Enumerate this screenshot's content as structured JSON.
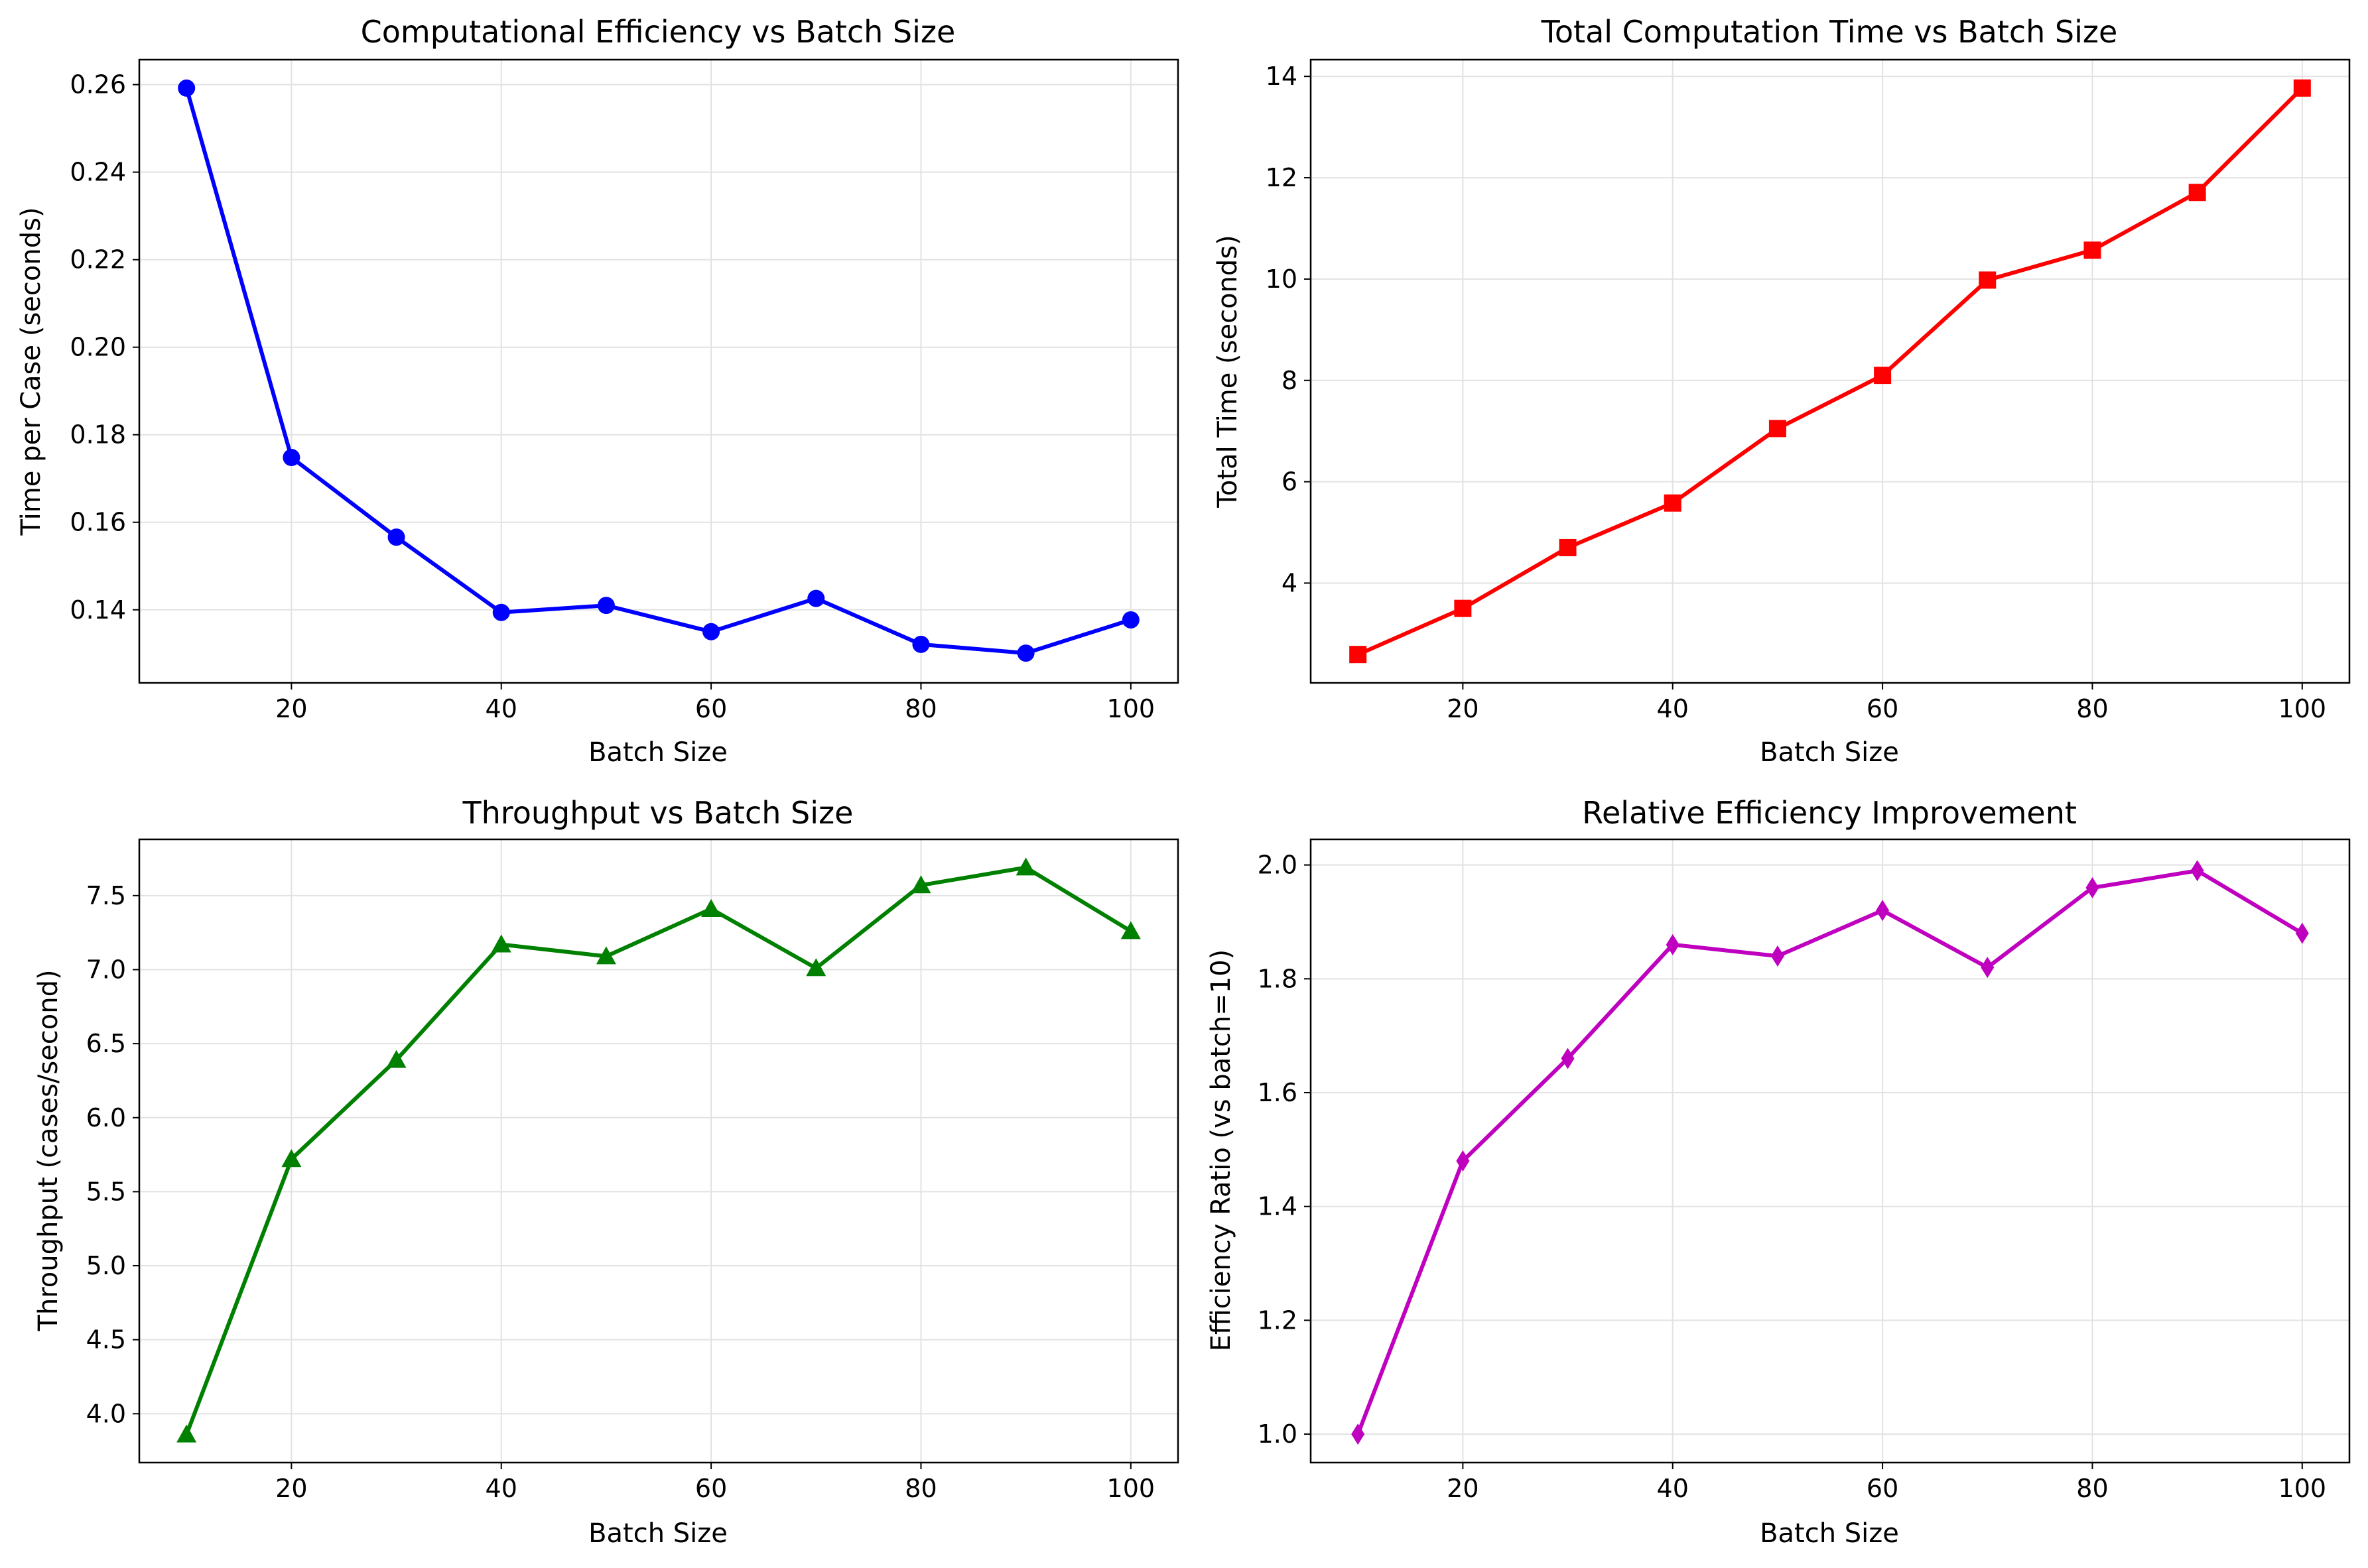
{
  "figure": {
    "layout": "2x2 grid",
    "chart_count": 4
  },
  "chart_data": [
    {
      "type": "line",
      "title": "Computational Efficiency vs Batch Size",
      "xlabel": "Batch Size",
      "ylabel": "Time per Case (seconds)",
      "x": [
        10,
        20,
        30,
        40,
        50,
        60,
        70,
        80,
        90,
        100
      ],
      "series": [
        {
          "values": [
            0.2592,
            0.1748,
            0.1566,
            0.1394,
            0.141,
            0.135,
            0.1426,
            0.1321,
            0.1301,
            0.1377
          ],
          "color": "#0000ff",
          "marker": "circle"
        }
      ],
      "xlim": [
        5.5,
        104.5
      ],
      "ylim": [
        0.1233,
        0.2657
      ],
      "xticks": [
        20,
        40,
        60,
        80,
        100
      ],
      "yticks": [
        0.14,
        0.16,
        0.18,
        0.2,
        0.22,
        0.24,
        0.26
      ],
      "ytick_labels": [
        "0.14",
        "0.16",
        "0.18",
        "0.20",
        "0.22",
        "0.24",
        "0.26"
      ],
      "grid": true
    },
    {
      "type": "line",
      "title": "Total Computation Time vs Batch Size",
      "xlabel": "Batch Size",
      "ylabel": "Total Time (seconds)",
      "x": [
        10,
        20,
        30,
        40,
        50,
        60,
        70,
        80,
        90,
        100
      ],
      "series": [
        {
          "values": [
            2.59,
            3.5,
            4.7,
            5.58,
            7.05,
            8.1,
            9.98,
            10.57,
            11.71,
            13.77
          ],
          "color": "#ff0000",
          "marker": "square"
        }
      ],
      "xlim": [
        5.5,
        104.5
      ],
      "ylim": [
        2.03,
        14.33
      ],
      "xticks": [
        20,
        40,
        60,
        80,
        100
      ],
      "yticks": [
        4,
        6,
        8,
        10,
        12,
        14
      ],
      "ytick_labels": [
        "4",
        "6",
        "8",
        "10",
        "12",
        "14"
      ],
      "grid": true
    },
    {
      "type": "line",
      "title": "Throughput vs Batch Size",
      "xlabel": "Batch Size",
      "ylabel": "Throughput (cases/second)",
      "x": [
        10,
        20,
        30,
        40,
        50,
        60,
        70,
        80,
        90,
        100
      ],
      "series": [
        {
          "values": [
            3.86,
            5.72,
            6.39,
            7.17,
            7.09,
            7.41,
            7.01,
            7.57,
            7.69,
            7.26
          ],
          "color": "#008000",
          "marker": "triangle"
        }
      ],
      "xlim": [
        5.5,
        104.5
      ],
      "ylim": [
        3.67,
        7.88
      ],
      "xticks": [
        20,
        40,
        60,
        80,
        100
      ],
      "yticks": [
        4.0,
        4.5,
        5.0,
        5.5,
        6.0,
        6.5,
        7.0,
        7.5
      ],
      "ytick_labels": [
        "4.0",
        "4.5",
        "5.0",
        "5.5",
        "6.0",
        "6.5",
        "7.0",
        "7.5"
      ],
      "grid": true
    },
    {
      "type": "line",
      "title": "Relative Efficiency Improvement",
      "xlabel": "Batch Size",
      "ylabel": "Efficiency Ratio (vs batch=10)",
      "x": [
        10,
        20,
        30,
        40,
        50,
        60,
        70,
        80,
        90,
        100
      ],
      "series": [
        {
          "values": [
            1.0,
            1.48,
            1.66,
            1.86,
            1.84,
            1.92,
            1.82,
            1.96,
            1.99,
            1.88
          ],
          "color": "#bf00bf",
          "marker": "diamond"
        }
      ],
      "xlim": [
        5.5,
        104.5
      ],
      "ylim": [
        0.95,
        2.045
      ],
      "xticks": [
        20,
        40,
        60,
        80,
        100
      ],
      "yticks": [
        1.0,
        1.2,
        1.4,
        1.6,
        1.8,
        2.0
      ],
      "ytick_labels": [
        "1.0",
        "1.2",
        "1.4",
        "1.6",
        "1.8",
        "2.0"
      ],
      "grid": true
    }
  ]
}
